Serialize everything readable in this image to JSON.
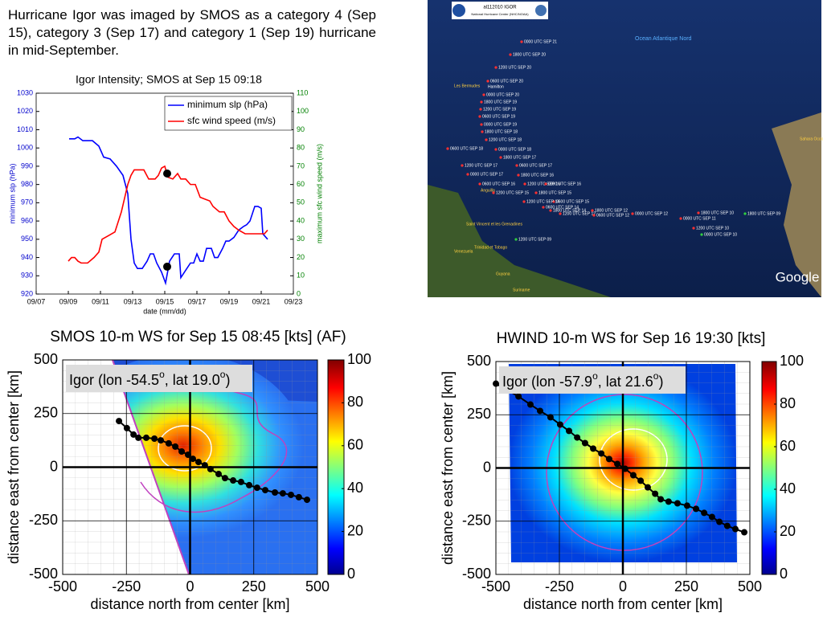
{
  "caption": "Hurricane Igor was imaged by SMOS as a category 4 (Sep 15), category 3 (Sep 17) and category 1 (Sep 19) hurricane in mid-September.",
  "map": {
    "title": "al112010 IGOR",
    "subtitle": "National Hurricane Center (NHC/NOAA)",
    "credit": "Google",
    "places": [
      "Ocean Atlantique Nord",
      "Les Bermudes",
      "Hamilton",
      "Anguilla",
      "Saint Vincent et les Grenadines",
      "Trinidad et Tobago",
      "Venezuela",
      "Guyana",
      "Suriname",
      "Sahara Occidental"
    ],
    "track_labels": [
      "0000 UTC SEP 21",
      "1800 UTC SEP 20",
      "1200 UTC SEP 20",
      "0600 UTC SEP 20",
      "0000 UTC SEP 20",
      "1800 UTC SEP 19",
      "1200 UTC SEP 19",
      "0600 UTC SEP 19",
      "0000 UTC SEP 19",
      "1800 UTC SEP 18",
      "1200 UTC SEP 18",
      "0600 UTC SEP 18",
      "0000 UTC SEP 18",
      "1800 UTC SEP 17",
      "1200 UTC SEP 17",
      "0600 UTC SEP 17",
      "0000 UTC SEP 17",
      "1800 UTC SEP 16",
      "1200 UTC SEP 16",
      "0600 UTC SEP 16",
      "0000 UTC SEP 16",
      "1800 UTC SEP 15",
      "1200 UTC SEP 15",
      "0600 UTC SEP 15",
      "1800 UTC SEP 14",
      "1200 UTC SEP 14",
      "0600 UTC SEP 14",
      "1800 UTC SEP 12",
      "1200 UTC SEP 12",
      "0600 UTC SEP 12",
      "0000 UTC SEP 12",
      "0000 UTC SEP 11",
      "1800 UTC SEP 10",
      "1200 UTC SEP 10",
      "0000 UTC SEP 10",
      "1200 UTC SEP 09",
      "1800 UTC SEP 09"
    ]
  },
  "chart_data": [
    {
      "type": "line",
      "title": "Igor Intensity; SMOS at Sep 15 09:18",
      "xlabel": "date (mm/dd)",
      "ylabel": "minimum slp (hPa)",
      "y2label": "maximum sfc wind speed (m/s)",
      "xlim": [
        7,
        23
      ],
      "xticks": [
        {
          "value": 7,
          "label": "09/07"
        },
        {
          "value": 9,
          "label": "09/09"
        },
        {
          "value": 11,
          "label": "09/11"
        },
        {
          "value": 13,
          "label": "09/13"
        },
        {
          "value": 15,
          "label": "09/15"
        },
        {
          "value": 17,
          "label": "09/17"
        },
        {
          "value": 19,
          "label": "09/19"
        },
        {
          "value": 21,
          "label": "09/21"
        },
        {
          "value": 23,
          "label": "09/23"
        }
      ],
      "ylim": [
        920,
        1030
      ],
      "yticks": [
        920,
        930,
        940,
        950,
        960,
        970,
        980,
        990,
        1000,
        1010,
        1020,
        1030
      ],
      "y2lim": [
        0,
        110
      ],
      "y2ticks": [
        0,
        10,
        20,
        30,
        40,
        50,
        60,
        70,
        80,
        90,
        100,
        110
      ],
      "legend": "upper right",
      "series": [
        {
          "name": "minimum slp (hPa)",
          "color": "#0000ff",
          "x": [
            9.05,
            9.4,
            9.6,
            9.9,
            10.5,
            10.9,
            11.2,
            11.6,
            12.0,
            12.4,
            12.7,
            12.9,
            13.1,
            13.3,
            13.6,
            13.9,
            14.1,
            14.3,
            14.5,
            14.8,
            15.05,
            15.3,
            15.6,
            15.9,
            16.0,
            16.3,
            16.6,
            16.8,
            17.0,
            17.2,
            17.4,
            17.6,
            17.9,
            18.1,
            18.3,
            18.6,
            18.8,
            19.0,
            19.3,
            19.6,
            19.9,
            20.1,
            20.3,
            20.6,
            20.8,
            21.0,
            21.1,
            21.3,
            21.4
          ],
          "values": [
            1005,
            1005,
            1006,
            1004,
            1004,
            1001,
            995,
            994,
            990,
            985,
            975,
            950,
            937,
            934,
            934,
            938,
            942,
            942,
            937,
            932,
            926,
            938,
            942,
            942,
            929,
            933,
            937,
            937,
            942,
            938,
            938,
            945,
            945,
            940,
            940,
            945,
            949,
            949,
            951,
            955,
            957,
            958,
            960,
            968,
            968,
            967,
            953,
            951,
            950
          ]
        },
        {
          "name": "sfc wind speed (m/s)",
          "color": "#ff0000",
          "axis": "y2",
          "x": [
            9.0,
            9.2,
            9.4,
            9.6,
            9.8,
            10.2,
            10.6,
            10.9,
            11.1,
            11.5,
            11.9,
            12.3,
            12.7,
            12.9,
            13.1,
            13.7,
            14.0,
            14.4,
            14.6,
            14.8,
            15.0,
            15.2,
            15.5,
            15.8,
            16.0,
            16.3,
            16.6,
            16.9,
            17.2,
            17.5,
            17.8,
            18.0,
            18.4,
            18.7,
            19.0,
            19.3,
            19.6,
            20.0,
            20.6,
            21.0,
            21.2,
            21.4
          ],
          "values": [
            18,
            20,
            20,
            18,
            17,
            17,
            20,
            23,
            30,
            32,
            34,
            45,
            60,
            65,
            68,
            68,
            63,
            63,
            65,
            69,
            70,
            64,
            63,
            66,
            63,
            63,
            60,
            60,
            53,
            52,
            51,
            48,
            45,
            45,
            40,
            37,
            35,
            33,
            33,
            33,
            33,
            35
          ]
        }
      ],
      "markers": [
        {
          "x": 15.15,
          "y": 935
        },
        {
          "x": 15.15,
          "y2": 66
        }
      ]
    },
    {
      "type": "heatmap",
      "title": "SMOS 10-m WS for Sep 15 08:45 [kts] (AF)",
      "xlabel": "distance north from center [km]",
      "ylabel": "distance east from center [km]",
      "xlim": [
        -500,
        500
      ],
      "xticks": [
        -500,
        -250,
        0,
        250,
        500
      ],
      "ylim": [
        -500,
        500
      ],
      "yticks": [
        -500,
        -250,
        0,
        250,
        500
      ],
      "colorbar": {
        "lim": [
          0,
          100
        ],
        "ticks": [
          0,
          20,
          40,
          60,
          80,
          100
        ]
      },
      "annotation": [
        "Igor (lon -54.5",
        "o",
        ", lat 19.0",
        "o",
        ")"
      ],
      "track": {
        "x": [
          -279,
          -248,
          -222,
          -203,
          -172,
          -140,
          -115,
          -84,
          -58,
          -33,
          -8,
          11,
          33,
          58,
          80,
          112,
          137,
          169,
          200,
          232,
          263,
          295,
          333,
          364,
          396,
          427,
          459
        ],
        "y": [
          215,
          182,
          152,
          137,
          137,
          133,
          125,
          111,
          96,
          73,
          58,
          39,
          24,
          9,
          -9,
          -32,
          -51,
          -62,
          -69,
          -84,
          -96,
          -107,
          -118,
          -122,
          -129,
          -140,
          -152
        ]
      }
    },
    {
      "type": "heatmap",
      "title": "HWIND 10-m WS for Sep 16 19:30 [kts]",
      "xlabel": "distance north from center [km]",
      "ylabel": "distance east from center [km]",
      "xlim": [
        -500,
        500
      ],
      "xticks": [
        -500,
        -250,
        0,
        250,
        500
      ],
      "ylim": [
        -500,
        500
      ],
      "yticks": [
        -500,
        -250,
        0,
        250,
        500
      ],
      "colorbar": {
        "lim": [
          0,
          100
        ],
        "ticks": [
          0,
          20,
          40,
          60,
          80,
          100
        ]
      },
      "annotation": [
        "Igor (lon -57.9",
        "o",
        ", lat 21.6",
        "o",
        ")"
      ],
      "track": {
        "x": [
          -500,
          -411,
          -364,
          -326,
          -285,
          -247,
          -212,
          -180,
          -149,
          -117,
          -85,
          -54,
          -22,
          9,
          41,
          70,
          98,
          127,
          149,
          180,
          215,
          253,
          288,
          320,
          351,
          380,
          411,
          443,
          478
        ],
        "y": [
          396,
          336,
          298,
          268,
          238,
          204,
          174,
          143,
          117,
          91,
          68,
          42,
          19,
          -4,
          -34,
          -60,
          -91,
          -121,
          -147,
          -158,
          -166,
          -177,
          -192,
          -211,
          -230,
          -253,
          -272,
          -287,
          -302
        ]
      }
    }
  ]
}
